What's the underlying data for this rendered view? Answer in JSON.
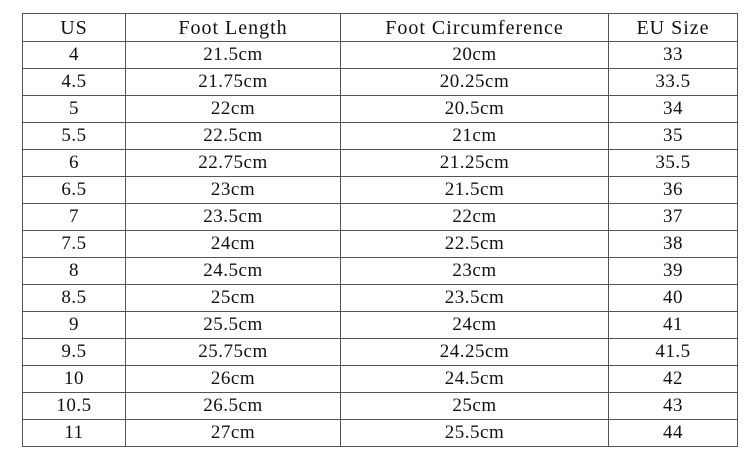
{
  "table": {
    "headers": [
      "US",
      "Foot Length",
      "Foot Circumference",
      "EU Size"
    ],
    "rows": [
      [
        "4",
        "21.5cm",
        "20cm",
        "33"
      ],
      [
        "4.5",
        "21.75cm",
        "20.25cm",
        "33.5"
      ],
      [
        "5",
        "22cm",
        "20.5cm",
        "34"
      ],
      [
        "5.5",
        "22.5cm",
        "21cm",
        "35"
      ],
      [
        "6",
        "22.75cm",
        "21.25cm",
        "35.5"
      ],
      [
        "6.5",
        "23cm",
        "21.5cm",
        "36"
      ],
      [
        "7",
        "23.5cm",
        "22cm",
        "37"
      ],
      [
        "7.5",
        "24cm",
        "22.5cm",
        "38"
      ],
      [
        "8",
        "24.5cm",
        "23cm",
        "39"
      ],
      [
        "8.5",
        "25cm",
        "23.5cm",
        "40"
      ],
      [
        "9",
        "25.5cm",
        "24cm",
        "41"
      ],
      [
        "9.5",
        "25.75cm",
        "24.25cm",
        "41.5"
      ],
      [
        "10",
        "26cm",
        "24.5cm",
        "42"
      ],
      [
        "10.5",
        "26.5cm",
        "25cm",
        "43"
      ],
      [
        "11",
        "27cm",
        "25.5cm",
        "44"
      ]
    ]
  }
}
